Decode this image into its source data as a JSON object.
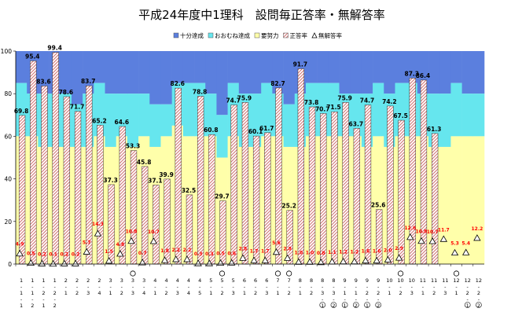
{
  "chart_data": {
    "type": "bar",
    "title": "平成24年度中1理科　設問毎正答率・無解答率",
    "ylim": [
      0,
      100
    ],
    "yticks": [
      0,
      20,
      40,
      60,
      80,
      100
    ],
    "legend": {
      "placement": "top",
      "entries": [
        {
          "key": "junmanzoku",
          "label": "十分達成",
          "color": "#5b7fde"
        },
        {
          "key": "ooomune",
          "label": "おおむね達成",
          "color": "#66e6ee"
        },
        {
          "key": "doryoku",
          "label": "要努力",
          "color": "#ffffaa"
        },
        {
          "key": "seitou",
          "label": "正答率",
          "color": "#f4e0e0"
        },
        {
          "key": "mukai",
          "label": "無解答率",
          "color": "#ffffff"
        }
      ]
    },
    "categories": [
      "1-1-1",
      "1-1-2",
      "1-2-1",
      "1-2-2",
      "2-1",
      "2-2",
      "2-3",
      "2-4",
      "3-1",
      "3-2",
      "3-3",
      "3-4",
      "4-1",
      "4-2",
      "4-3",
      "4-4",
      "4-5",
      "5-1",
      "5-2",
      "5-3",
      "6-1",
      "6-2",
      "6-3",
      "7-1",
      "7-2",
      "8-1",
      "8-2",
      "8-3-1",
      "8-3-2",
      "9-1-1",
      "9-1-2",
      "9-2-1",
      "9-2-2",
      "10-1",
      "10-2",
      "10-3",
      "11-1",
      "11-2",
      "11-3",
      "12-1",
      "12-2-1",
      "12-2-2"
    ],
    "circle_marks": [
      10,
      18,
      23,
      24,
      34,
      39
    ],
    "goal_bands": [
      {
        "doryoku": 60,
        "ooomune": 85
      },
      {
        "doryoku": 60,
        "ooomune": 80
      },
      {
        "doryoku": 55,
        "ooomune": 80
      },
      {
        "doryoku": 55,
        "ooomune": 80
      },
      {
        "doryoku": 55,
        "ooomune": 80
      },
      {
        "doryoku": 55,
        "ooomune": 75
      },
      {
        "doryoku": 55,
        "ooomune": 80
      },
      {
        "doryoku": 60,
        "ooomune": 85
      },
      {
        "doryoku": 55,
        "ooomune": 80
      },
      {
        "doryoku": 60,
        "ooomune": 80
      },
      {
        "doryoku": 55,
        "ooomune": 80
      },
      {
        "doryoku": 60,
        "ooomune": 80
      },
      {
        "doryoku": 55,
        "ooomune": 75
      },
      {
        "doryoku": 60,
        "ooomune": 75
      },
      {
        "doryoku": 65,
        "ooomune": 85
      },
      {
        "doryoku": 60,
        "ooomune": 85
      },
      {
        "doryoku": 60,
        "ooomune": 85
      },
      {
        "doryoku": 60,
        "ooomune": 80
      },
      {
        "doryoku": 50,
        "ooomune": 70
      },
      {
        "doryoku": 60,
        "ooomune": 85
      },
      {
        "doryoku": 55,
        "ooomune": 80
      },
      {
        "doryoku": 55,
        "ooomune": 80
      },
      {
        "doryoku": 60,
        "ooomune": 85
      },
      {
        "doryoku": 60,
        "ooomune": 80
      },
      {
        "doryoku": 55,
        "ooomune": 75
      },
      {
        "doryoku": 55,
        "ooomune": 80
      },
      {
        "doryoku": 60,
        "ooomune": 85
      },
      {
        "doryoku": 60,
        "ooomune": 85
      },
      {
        "doryoku": 60,
        "ooomune": 85
      },
      {
        "doryoku": 60,
        "ooomune": 80
      },
      {
        "doryoku": 60,
        "ooomune": 80
      },
      {
        "doryoku": 55,
        "ooomune": 80
      },
      {
        "doryoku": 60,
        "ooomune": 85
      },
      {
        "doryoku": 55,
        "ooomune": 80
      },
      {
        "doryoku": 60,
        "ooomune": 85
      },
      {
        "doryoku": 60,
        "ooomune": 85
      },
      {
        "doryoku": 60,
        "ooomune": 80
      },
      {
        "doryoku": 55,
        "ooomune": 80
      },
      {
        "doryoku": 55,
        "ooomune": 80
      },
      {
        "doryoku": 60,
        "ooomune": 85
      },
      {
        "doryoku": 60,
        "ooomune": 80
      },
      {
        "doryoku": 60,
        "ooomune": 80
      }
    ],
    "series": [
      {
        "key": "seitou",
        "name": "正答率",
        "values": [
          69.8,
          95.4,
          83.6,
          99.4,
          78.6,
          71.7,
          83.7,
          65.2,
          37.3,
          64.6,
          53.3,
          45.8,
          37.1,
          39.9,
          82.6,
          32.5,
          78.8,
          60.8,
          29.7,
          74.7,
          75.9,
          60.1,
          61.7,
          82.7,
          25.2,
          91.7,
          73.8,
          70.7,
          71.5,
          75.9,
          63.7,
          74.7,
          25.6,
          74.2,
          67.5,
          87.3,
          86.4,
          61.3,
          0,
          0,
          0,
          0
        ]
      },
      {
        "key": "mukai",
        "name": "無解答率",
        "values": [
          4.9,
          0.5,
          0.2,
          0.1,
          0.2,
          0.2,
          5.7,
          14.3,
          1.5,
          4.8,
          10.8,
          0.7,
          10.7,
          1.8,
          2.2,
          2.2,
          0.3,
          0.3,
          0.5,
          0.6,
          2.8,
          1.7,
          1.7,
          5.6,
          2.8,
          1.0,
          1.0,
          0.8,
          1.1,
          1.2,
          1.2,
          1.6,
          1.6,
          2.0,
          2.9,
          12.6,
          10.8,
          10.7,
          11.7,
          5.3,
          5.4,
          12.2
        ]
      }
    ],
    "value_labels": [
      "69.8",
      "95.4",
      "83.6",
      "99.4",
      "78.6",
      "71.7",
      "83.7",
      "65.2",
      "37.3",
      "64.6",
      "53.3",
      "45.8",
      "37.1",
      "39.9",
      "82.6",
      "32.5",
      "78.8",
      "60.8",
      "29.7",
      "74.7",
      "75.9",
      "60.1",
      "61.7",
      "82.7",
      "25.2",
      "91.7",
      "73.8",
      "70.7",
      "71.5",
      "75.9",
      "63.7",
      "74.7",
      "25.6",
      "74.2",
      "67.5",
      "87.3",
      "86.4",
      "61.3",
      "",
      "",
      "",
      ""
    ],
    "nokai_labels": [
      "4.9",
      "0.5",
      "0.2",
      "0.1",
      "0.2",
      "0.2",
      "5.7",
      "14.3",
      "1.5",
      "4.8",
      "10.8",
      "0.7",
      "10.7",
      "1.8",
      "2.2",
      "2.2",
      "0.3",
      "0.3",
      "0.5",
      "0.6",
      "2.8",
      "1.7",
      "1.7",
      "5.6",
      "2.8",
      "1.0",
      "1.0",
      "0.8",
      "1.1",
      "1.2",
      "1.2",
      "1.6",
      "1.6",
      "2.0",
      "2.9",
      "12.6",
      "10.8",
      "10.7",
      "11.7",
      "5.3",
      "5.4",
      "12.2"
    ]
  }
}
